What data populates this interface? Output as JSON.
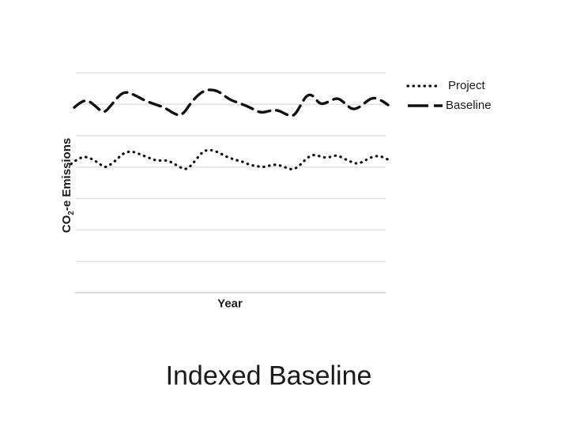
{
  "slide": {
    "title": "Indexed Baseline",
    "background": "#ffffff"
  },
  "colors": {
    "series": "#111111",
    "gridline": "#e2e2e2",
    "axis_line": "#cfcfcf",
    "text": "#1a1a1a"
  },
  "chart_data": {
    "type": "line",
    "title": "",
    "xlabel": "Year",
    "ylabel": "CO2-e Emissions",
    "ylabel_parts": {
      "prefix": "CO",
      "subscript": "2",
      "suffix": "-e Emissions"
    },
    "x_axis": {
      "tick_labels": [],
      "numeric_labels_visible": false
    },
    "y_axis": {
      "tick_labels": [],
      "numeric_labels_visible": false,
      "gridline_units": [
        1,
        2,
        3,
        4,
        5,
        6,
        7
      ],
      "ylim": [
        0,
        7
      ]
    },
    "grid": "horizontal",
    "legend": {
      "position": "right",
      "entries": [
        {
          "label": "Project",
          "line_style": "dotted"
        },
        {
          "label": "Baseline",
          "line_style": "dashed"
        }
      ]
    },
    "series": [
      {
        "name": "Project",
        "line_style": "dotted",
        "points": [
          [
            0,
            4.1
          ],
          [
            6,
            4.22
          ],
          [
            14,
            4.32
          ],
          [
            21,
            4.32
          ],
          [
            29,
            4.22
          ],
          [
            36,
            4.1
          ],
          [
            43,
            3.98
          ],
          [
            50,
            4.08
          ],
          [
            58,
            4.25
          ],
          [
            65,
            4.42
          ],
          [
            73,
            4.5
          ],
          [
            80,
            4.48
          ],
          [
            88,
            4.4
          ],
          [
            96,
            4.32
          ],
          [
            103,
            4.25
          ],
          [
            110,
            4.2
          ],
          [
            118,
            4.22
          ],
          [
            125,
            4.18
          ],
          [
            132,
            4.08
          ],
          [
            139,
            3.98
          ],
          [
            146,
            3.92
          ],
          [
            153,
            4.08
          ],
          [
            160,
            4.3
          ],
          [
            167,
            4.5
          ],
          [
            174,
            4.55
          ],
          [
            181,
            4.52
          ],
          [
            188,
            4.45
          ],
          [
            195,
            4.35
          ],
          [
            202,
            4.28
          ],
          [
            209,
            4.22
          ],
          [
            216,
            4.18
          ],
          [
            223,
            4.1
          ],
          [
            230,
            4.05
          ],
          [
            237,
            4.02
          ],
          [
            244,
            4.0
          ],
          [
            251,
            4.05
          ],
          [
            258,
            4.08
          ],
          [
            265,
            4.05
          ],
          [
            272,
            3.98
          ],
          [
            279,
            3.92
          ],
          [
            286,
            3.98
          ],
          [
            293,
            4.15
          ],
          [
            300,
            4.32
          ],
          [
            307,
            4.4
          ],
          [
            314,
            4.35
          ],
          [
            321,
            4.3
          ],
          [
            328,
            4.32
          ],
          [
            335,
            4.38
          ],
          [
            342,
            4.32
          ],
          [
            349,
            4.22
          ],
          [
            356,
            4.15
          ],
          [
            363,
            4.1
          ],
          [
            370,
            4.18
          ],
          [
            377,
            4.28
          ],
          [
            384,
            4.35
          ],
          [
            391,
            4.35
          ],
          [
            398,
            4.28
          ],
          [
            404,
            4.2
          ]
        ]
      },
      {
        "name": "Baseline",
        "line_style": "dashed",
        "points": [
          [
            4,
            5.9
          ],
          [
            13,
            6.1
          ],
          [
            22,
            6.12
          ],
          [
            32,
            5.92
          ],
          [
            41,
            5.7
          ],
          [
            51,
            5.98
          ],
          [
            62,
            6.32
          ],
          [
            70,
            6.4
          ],
          [
            80,
            6.3
          ],
          [
            93,
            6.12
          ],
          [
            106,
            6.0
          ],
          [
            118,
            5.9
          ],
          [
            130,
            5.7
          ],
          [
            140,
            5.62
          ],
          [
            153,
            6.1
          ],
          [
            165,
            6.4
          ],
          [
            176,
            6.48
          ],
          [
            188,
            6.4
          ],
          [
            200,
            6.15
          ],
          [
            215,
            6.02
          ],
          [
            228,
            5.88
          ],
          [
            240,
            5.72
          ],
          [
            252,
            5.8
          ],
          [
            262,
            5.82
          ],
          [
            274,
            5.65
          ],
          [
            282,
            5.62
          ],
          [
            290,
            5.95
          ],
          [
            298,
            6.3
          ],
          [
            306,
            6.3
          ],
          [
            315,
            5.98
          ],
          [
            326,
            6.08
          ],
          [
            337,
            6.22
          ],
          [
            347,
            6.02
          ],
          [
            356,
            5.82
          ],
          [
            366,
            5.92
          ],
          [
            375,
            6.12
          ],
          [
            383,
            6.22
          ],
          [
            393,
            6.12
          ],
          [
            401,
            5.98
          ]
        ]
      }
    ]
  }
}
